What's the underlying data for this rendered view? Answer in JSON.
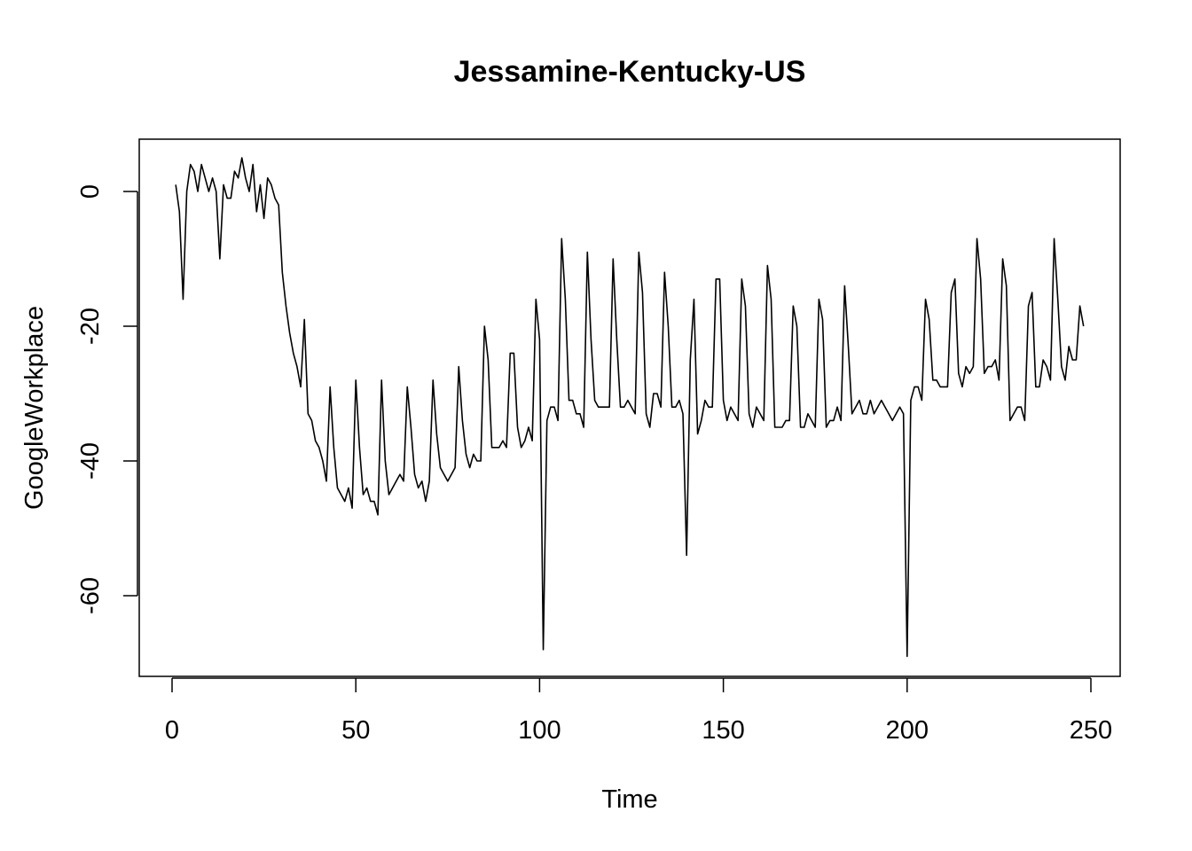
{
  "chart_data": {
    "type": "line",
    "title": "Jessamine-Kentucky-US",
    "xlabel": "Time",
    "ylabel": "GoogleWorkplace",
    "xlim": [
      0,
      250
    ],
    "ylim": [
      -69,
      5
    ],
    "xticks": [
      0,
      50,
      100,
      150,
      200,
      250
    ],
    "yticks": [
      0,
      -20,
      -40,
      -60
    ],
    "xtick_labels": [
      "0",
      "50",
      "100",
      "150",
      "200",
      "250"
    ],
    "ytick_labels": [
      "0",
      "-20",
      "-40",
      "-60"
    ],
    "grid": false,
    "series": [
      {
        "line_color": "#000000",
        "values": [
          1,
          -3,
          -16,
          0,
          4,
          3,
          0,
          4,
          2,
          0,
          2,
          0,
          -10,
          1,
          -1,
          -1,
          3,
          2,
          5,
          2,
          0,
          4,
          -3,
          1,
          -4,
          2,
          1,
          -1,
          -2,
          -12,
          -17,
          -21,
          -24,
          -26,
          -29,
          -19,
          -33,
          -34,
          -37,
          -38,
          -40,
          -43,
          -29,
          -38,
          -44,
          -45,
          -46,
          -44,
          -47,
          -28,
          -38,
          -45,
          -44,
          -46,
          -46,
          -48,
          -28,
          -40,
          -45,
          -44,
          -43,
          -42,
          -43,
          -29,
          -35,
          -42,
          -44,
          -43,
          -46,
          -43,
          -28,
          -36,
          -41,
          -42,
          -43,
          -42,
          -41,
          -26,
          -34,
          -39,
          -41,
          -39,
          -40,
          -40,
          -20,
          -25,
          -38,
          -38,
          -38,
          -37,
          -38,
          -24,
          -24,
          -35,
          -38,
          -37,
          -35,
          -37,
          -16,
          -22,
          -68,
          -34,
          -32,
          -32,
          -34,
          -7,
          -16,
          -31,
          -31,
          -33,
          -33,
          -35,
          -9,
          -22,
          -31,
          -32,
          -32,
          -32,
          -32,
          -10,
          -22,
          -32,
          -32,
          -31,
          -32,
          -33,
          -9,
          -15,
          -33,
          -35,
          -30,
          -30,
          -32,
          -12,
          -20,
          -32,
          -32,
          -31,
          -33,
          -54,
          -25,
          -16,
          -36,
          -34,
          -31,
          -32,
          -32,
          -13,
          -13,
          -31,
          -34,
          -32,
          -33,
          -34,
          -13,
          -17,
          -33,
          -35,
          -32,
          -33,
          -34,
          -11,
          -16,
          -35,
          -35,
          -35,
          -34,
          -34,
          -17,
          -20,
          -35,
          -35,
          -33,
          -34,
          -35,
          -16,
          -19,
          -35,
          -34,
          -34,
          -32,
          -34,
          -14,
          -23,
          -33,
          -32,
          -31,
          -33,
          -33,
          -31,
          -33,
          -32,
          -31,
          -32,
          -33,
          -34,
          -33,
          -32,
          -33,
          -69,
          -31,
          -29,
          -29,
          -31,
          -16,
          -19,
          -28,
          -28,
          -29,
          -29,
          -29,
          -15,
          -13,
          -27,
          -29,
          -26,
          -27,
          -26,
          -7,
          -13,
          -27,
          -26,
          -26,
          -25,
          -28,
          -10,
          -14,
          -34,
          -33,
          -32,
          -32,
          -34,
          -17,
          -15,
          -29,
          -29,
          -25,
          -26,
          -28,
          -7,
          -16,
          -26,
          -28,
          -23,
          -25,
          -25,
          -17,
          -20
        ]
      }
    ]
  }
}
